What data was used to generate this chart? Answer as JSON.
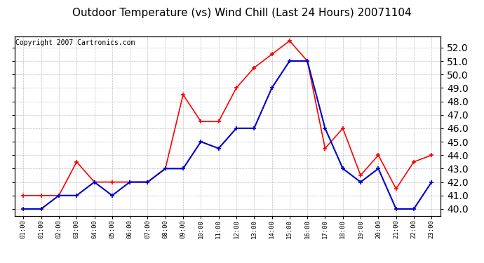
{
  "title": "Outdoor Temperature (vs) Wind Chill (Last 24 Hours) 20071104",
  "copyright": "Copyright 2007 Cartronics.com",
  "x_labels": [
    "01:00",
    "01:00",
    "02:00",
    "03:00",
    "04:00",
    "05:00",
    "06:00",
    "07:00",
    "08:00",
    "09:00",
    "10:00",
    "11:00",
    "12:00",
    "13:00",
    "14:00",
    "15:00",
    "16:00",
    "17:00",
    "18:00",
    "19:00",
    "20:00",
    "21:00",
    "22:00",
    "23:00"
  ],
  "red_values": [
    41.0,
    41.0,
    41.0,
    43.5,
    42.0,
    42.0,
    42.0,
    42.0,
    43.0,
    48.5,
    46.5,
    46.5,
    49.0,
    50.5,
    51.5,
    52.5,
    51.0,
    44.5,
    46.0,
    42.5,
    44.0,
    41.5,
    43.5,
    44.0
  ],
  "blue_values": [
    40.0,
    40.0,
    41.0,
    41.0,
    42.0,
    41.0,
    42.0,
    42.0,
    43.0,
    43.0,
    45.0,
    44.5,
    46.0,
    46.0,
    49.0,
    51.0,
    51.0,
    46.0,
    43.0,
    42.0,
    43.0,
    40.0,
    40.0,
    42.0
  ],
  "ylim": [
    39.5,
    52.8
  ],
  "yticks": [
    40.0,
    41.0,
    42.0,
    43.0,
    44.0,
    45.0,
    46.0,
    47.0,
    48.0,
    49.0,
    50.0,
    51.0,
    52.0
  ],
  "background_color": "#ffffff",
  "plot_bg_color": "#ffffff",
  "grid_color": "#b0b0b0",
  "red_color": "#ff0000",
  "blue_color": "#0000cc",
  "title_fontsize": 11,
  "copyright_fontsize": 7
}
